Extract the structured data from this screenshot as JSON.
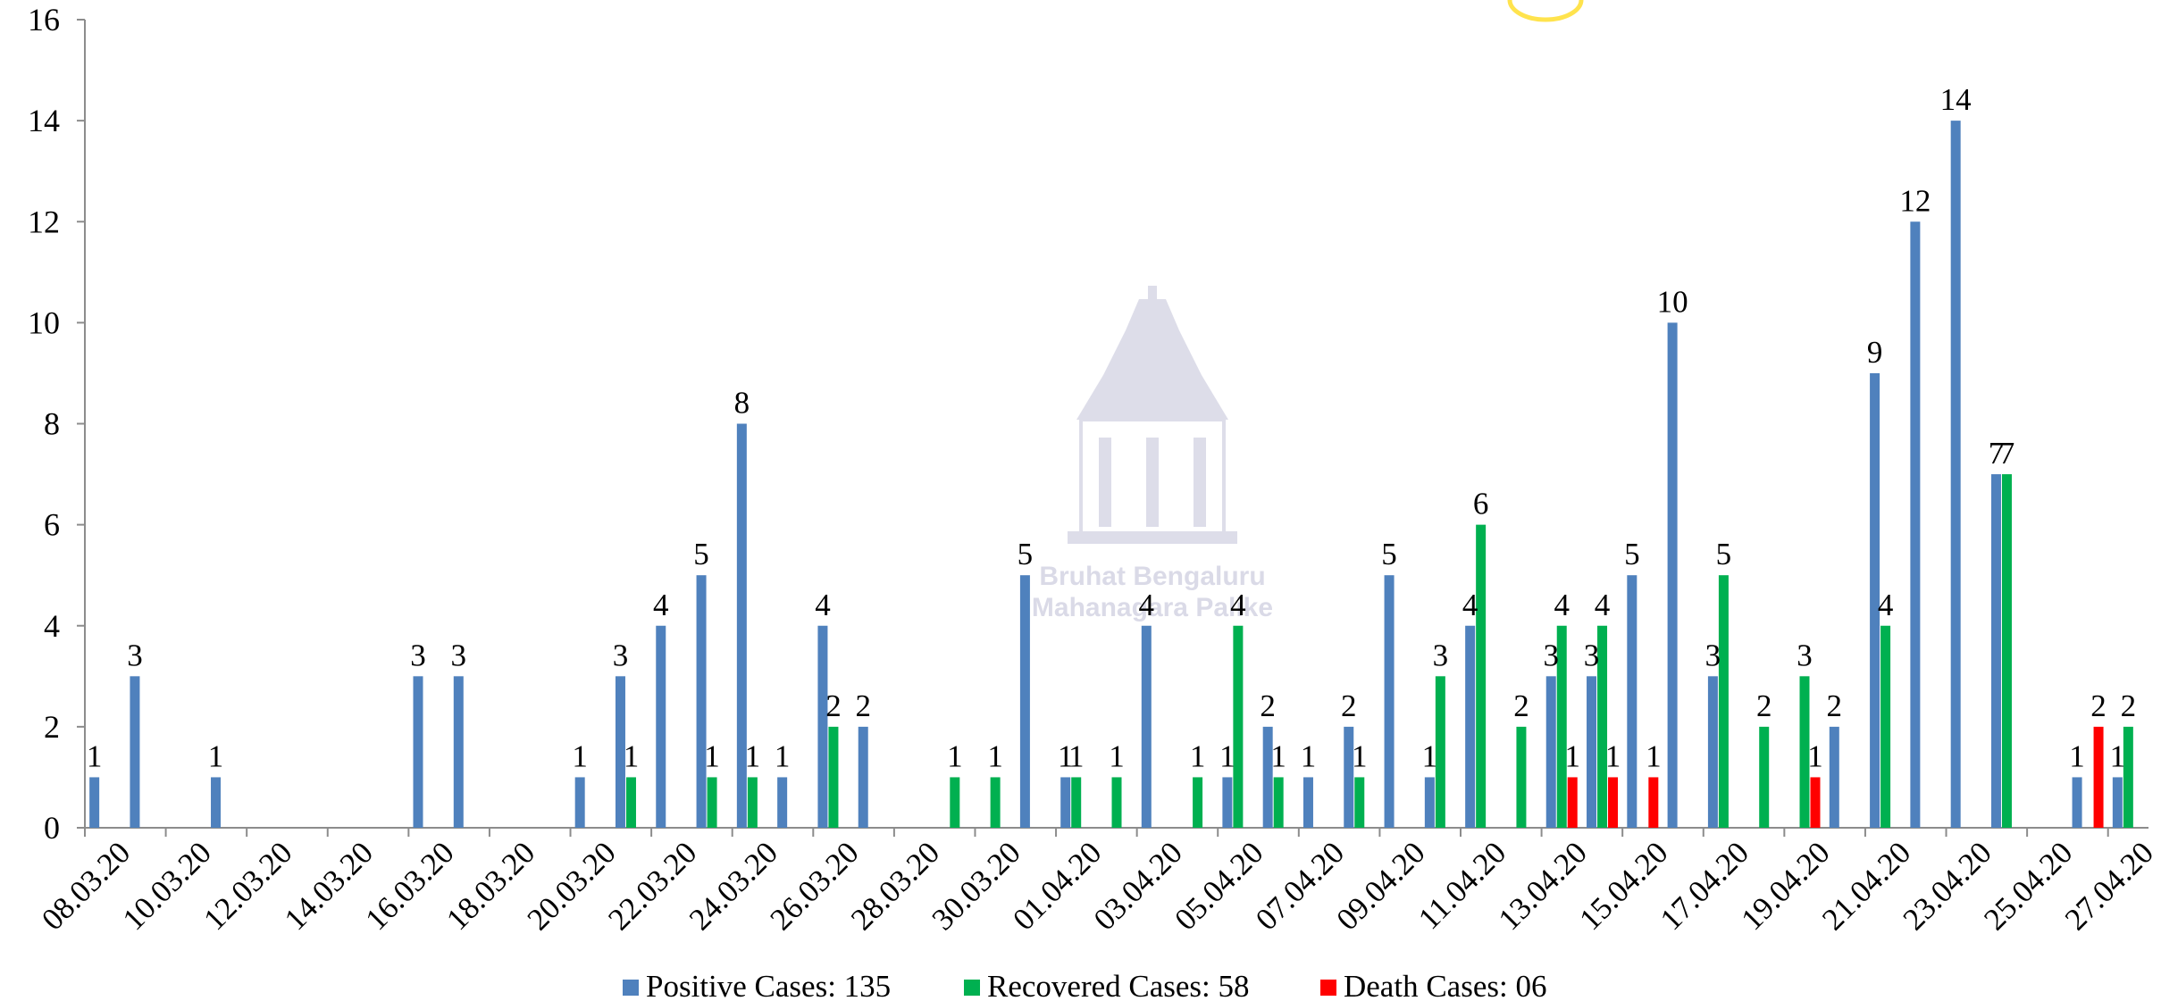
{
  "chart_data": {
    "type": "bar",
    "title": "",
    "xlabel": "",
    "ylabel": "",
    "ylim": [
      0,
      16
    ],
    "yticks": [
      0,
      2,
      4,
      6,
      8,
      10,
      12,
      14,
      16
    ],
    "grid": false,
    "legend_position": "bottom",
    "categories": [
      "08.03.20",
      "09.03.20",
      "10.03.20",
      "11.03.20",
      "12.03.20",
      "13.03.20",
      "14.03.20",
      "15.03.20",
      "16.03.20",
      "17.03.20",
      "18.03.20",
      "19.03.20",
      "20.03.20",
      "21.03.20",
      "22.03.20",
      "23.03.20",
      "24.03.20",
      "25.03.20",
      "26.03.20",
      "27.03.20",
      "28.03.20",
      "29.03.20",
      "30.03.20",
      "31.03.20",
      "01.04.20",
      "02.04.20",
      "03.04.20",
      "04.04.20",
      "05.04.20",
      "06.04.20",
      "07.04.20",
      "08.04.20",
      "09.04.20",
      "10.04.20",
      "11.04.20",
      "12.04.20",
      "13.04.20",
      "14.04.20",
      "15.04.20",
      "16.04.20",
      "17.04.20",
      "18.04.20",
      "19.04.20",
      "20.04.20",
      "21.04.20",
      "22.04.20",
      "23.04.20",
      "24.04.20",
      "25.04.20",
      "26.04.20",
      "27.04.20"
    ],
    "xtick_labels": [
      "08.03.20",
      "10.03.20",
      "12.03.20",
      "14.03.20",
      "16.03.20",
      "18.03.20",
      "20.03.20",
      "22.03.20",
      "24.03.20",
      "26.03.20",
      "28.03.20",
      "30.03.20",
      "01.04.20",
      "03.04.20",
      "05.04.20",
      "07.04.20",
      "09.04.20",
      "11.04.20",
      "13.04.20",
      "15.04.20",
      "17.04.20",
      "19.04.20",
      "21.04.20",
      "23.04.20",
      "25.04.20",
      "27.04.20"
    ],
    "series": [
      {
        "name": "Positive Cases: 135",
        "color": "#4f81bd",
        "values": [
          1,
          3,
          0,
          1,
          0,
          0,
          0,
          0,
          3,
          3,
          0,
          0,
          1,
          3,
          4,
          5,
          8,
          1,
          4,
          2,
          0,
          0,
          0,
          5,
          1,
          0,
          4,
          0,
          1,
          2,
          1,
          2,
          5,
          1,
          4,
          0,
          3,
          3,
          5,
          10,
          3,
          0,
          0,
          2,
          9,
          12,
          14,
          7,
          0,
          1,
          1
        ]
      },
      {
        "name": "Recovered Cases: 58",
        "color": "#00b050",
        "values": [
          0,
          0,
          0,
          0,
          0,
          0,
          0,
          0,
          0,
          0,
          0,
          0,
          0,
          1,
          0,
          1,
          1,
          0,
          2,
          0,
          0,
          1,
          1,
          0,
          1,
          1,
          0,
          1,
          4,
          1,
          0,
          1,
          0,
          3,
          6,
          2,
          4,
          4,
          0,
          0,
          5,
          2,
          3,
          0,
          4,
          0,
          0,
          7,
          0,
          0,
          2
        ]
      },
      {
        "name": "Death Cases: 06",
        "color": "#ff0000",
        "values": [
          0,
          0,
          0,
          0,
          0,
          0,
          0,
          0,
          0,
          0,
          0,
          0,
          0,
          0,
          0,
          0,
          0,
          0,
          0,
          0,
          0,
          0,
          0,
          0,
          0,
          0,
          0,
          0,
          0,
          0,
          0,
          0,
          0,
          0,
          0,
          0,
          1,
          1,
          1,
          0,
          0,
          0,
          1,
          0,
          0,
          0,
          0,
          0,
          0,
          2,
          0
        ]
      }
    ],
    "watermark": {
      "line1": "Bruhat Bengaluru",
      "line2": "Mahanagara Palike"
    }
  }
}
